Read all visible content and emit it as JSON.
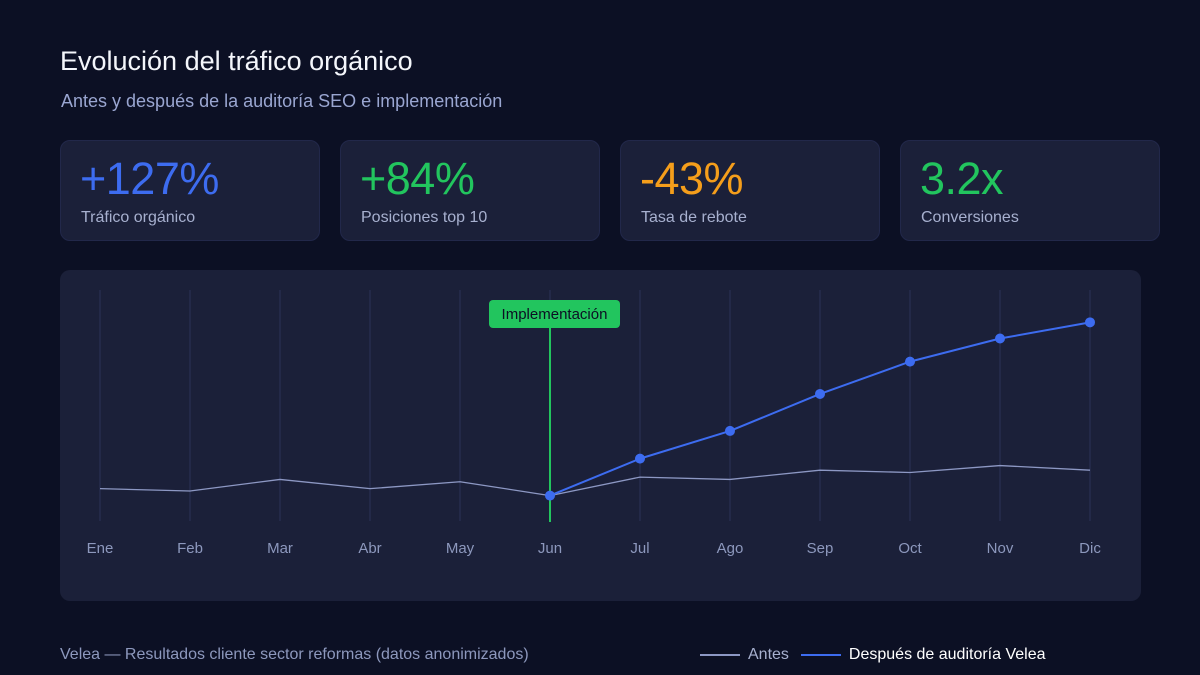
{
  "header": {
    "title": "Evolución del tráfico orgánico",
    "subtitle": "Antes y después de la auditoría SEO e implementación"
  },
  "kpis": [
    {
      "value": "+127%",
      "label": "Tráfico orgánico",
      "color": "#3d6cf0"
    },
    {
      "value": "+84%",
      "label": "Posiciones top 10",
      "color": "#22c55e"
    },
    {
      "value": "-43%",
      "label": "Tasa de rebote",
      "color": "#f59e1b"
    },
    {
      "value": "3.2x",
      "label": "Conversiones",
      "color": "#22c55e"
    }
  ],
  "chart_data": {
    "type": "line",
    "categories": [
      "Ene",
      "Feb",
      "Mar",
      "Abr",
      "May",
      "Jun",
      "Jul",
      "Ago",
      "Sep",
      "Oct",
      "Nov",
      "Dic"
    ],
    "ylim": [
      0,
      100
    ],
    "series": [
      {
        "name": "Antes",
        "color": "#8d98c4",
        "values": [
          14,
          13,
          18,
          14,
          17,
          11,
          19,
          18,
          22,
          21,
          24,
          22
        ],
        "markers": false
      },
      {
        "name": "Después de auditoría Velea",
        "color": "#3d6cf0",
        "values": [
          null,
          null,
          null,
          null,
          null,
          11,
          27,
          39,
          55,
          69,
          79,
          86
        ],
        "markers": true
      }
    ],
    "annotation": {
      "label": "Implementación",
      "category": "Jun",
      "color": "#22c55e"
    },
    "grid": "vertical"
  },
  "footer": {
    "source": "Velea — Resultados cliente sector reformas (datos anonimizados)"
  },
  "legend": {
    "before_label": "Antes",
    "after_label": "Después de auditoría Velea",
    "before_color": "#8d98c4",
    "after_color": "#3d6cf0"
  }
}
